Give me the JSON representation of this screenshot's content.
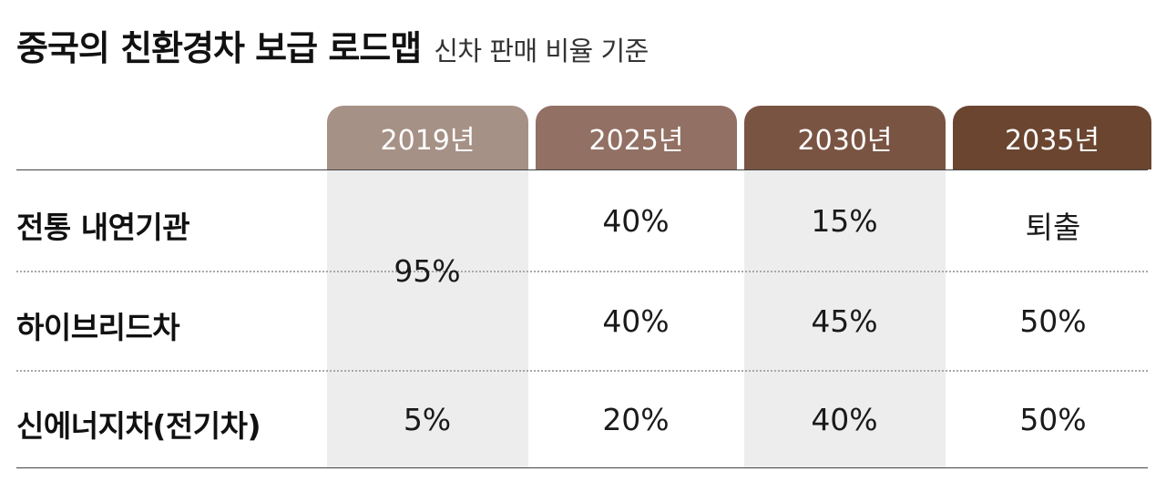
{
  "title": "중국의 친환경차 보급 로드맵",
  "subtitle": "신차 판매 비율 기준",
  "colors": {
    "tab_2019": "#a69186",
    "tab_2025": "#927064",
    "tab_2030": "#7a5443",
    "tab_2035": "#6b4530",
    "column_shade": "#ededed"
  },
  "years": [
    "2019년",
    "2025년",
    "2030년",
    "2035년"
  ],
  "rows": [
    {
      "label": "전통 내연기관",
      "values": [
        "95%",
        "40%",
        "15%",
        "퇴출"
      ]
    },
    {
      "label": "하이브리드차",
      "values": [
        "",
        "40%",
        "45%",
        "50%"
      ]
    },
    {
      "label": "신에너지차(전기차)",
      "values": [
        "5%",
        "20%",
        "40%",
        "50%"
      ]
    }
  ]
}
